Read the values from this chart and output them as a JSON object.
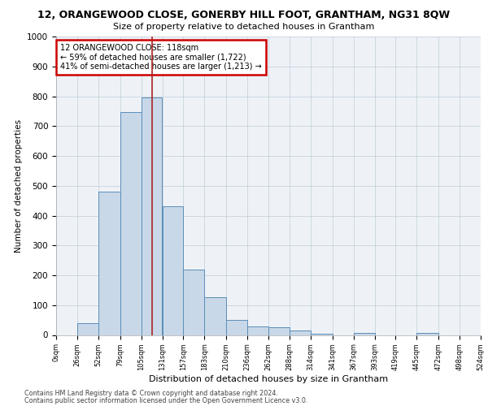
{
  "title1": "12, ORANGEWOOD CLOSE, GONERBY HILL FOOT, GRANTHAM, NG31 8QW",
  "title2": "Size of property relative to detached houses in Grantham",
  "xlabel": "Distribution of detached houses by size in Grantham",
  "ylabel": "Number of detached properties",
  "footnote1": "Contains HM Land Registry data © Crown copyright and database right 2024.",
  "footnote2": "Contains public sector information licensed under the Open Government Licence v3.0.",
  "annotation_line1": "12 ORANGEWOOD CLOSE: 118sqm",
  "annotation_line2": "← 59% of detached houses are smaller (1,722)",
  "annotation_line3": "41% of semi-detached houses are larger (1,213) →",
  "property_size": 118,
  "bar_left_edges": [
    0,
    26,
    52,
    79,
    105,
    131,
    157,
    183,
    210,
    236,
    262,
    288,
    314,
    341,
    367,
    393,
    419,
    445,
    472,
    498
  ],
  "bar_heights": [
    0,
    40,
    480,
    748,
    795,
    430,
    220,
    127,
    50,
    28,
    25,
    15,
    5,
    0,
    7,
    0,
    0,
    8,
    0,
    0
  ],
  "tick_labels": [
    "0sqm",
    "26sqm",
    "52sqm",
    "79sqm",
    "105sqm",
    "131sqm",
    "157sqm",
    "183sqm",
    "210sqm",
    "236sqm",
    "262sqm",
    "288sqm",
    "314sqm",
    "341sqm",
    "367sqm",
    "393sqm",
    "419sqm",
    "445sqm",
    "472sqm",
    "498sqm",
    "524sqm"
  ],
  "bar_color": "#c8d8e8",
  "bar_edge_color": "#5b8db8",
  "vline_color": "#aa2222",
  "grid_color": "#c0ccd8",
  "annotation_box_color": "#cc0000",
  "background_color": "#eef2f7",
  "ylim": [
    0,
    1000
  ],
  "yticks": [
    0,
    100,
    200,
    300,
    400,
    500,
    600,
    700,
    800,
    900,
    1000
  ]
}
